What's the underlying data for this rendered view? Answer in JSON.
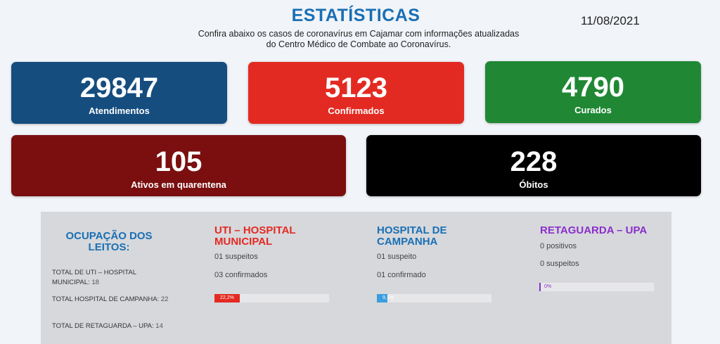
{
  "header": {
    "title": "ESTATÍSTICAS",
    "date": "11/08/2021",
    "subtitle_line1": "Confira abaixo os casos de coronavírus em Cajamar com informações atualizadas",
    "subtitle_line2": "do Centro Médico de Combate ao Coronavírus."
  },
  "cards": {
    "atendimentos": {
      "value": "29847",
      "label": "Atendimentos",
      "color": "#154d7f"
    },
    "confirmados": {
      "value": "5123",
      "label": "Confirmados",
      "color": "#e32a22"
    },
    "curados": {
      "value": "4790",
      "label": "Curados",
      "color": "#208834"
    },
    "ativos": {
      "value": "105",
      "label": "Ativos em quarentena",
      "color": "#7b0f0f"
    },
    "obitos": {
      "value": "228",
      "label": "Óbitos",
      "color": "#000000"
    }
  },
  "ocupacao": {
    "title_line1": "OCUPAÇÃO DOS",
    "title_line2": "LEITOS:",
    "stats": [
      {
        "label": "TOTAL DE UTI – HOSPITAL MUNICIPAL:",
        "value": "18"
      },
      {
        "label": "TOTAL HOSPITAL DE CAMPANHA:",
        "value": "22"
      },
      {
        "label": "TOTAL DE RETAGUARDA – UPA:",
        "value": "14"
      }
    ]
  },
  "columns": {
    "uti": {
      "title_line1": "UTI – HOSPITAL",
      "title_line2": "MUNICIPAL",
      "line1": "01 suspeitos",
      "line2": "03 confirmados",
      "percent_label": "22,2%",
      "percent": 22.2,
      "color": "#e32a22"
    },
    "campanha": {
      "title_line1": "HOSPITAL DE",
      "title_line2": "CAMPANHA",
      "line1": "01 suspeito",
      "line2": "01 confirmado",
      "percent_label": "9,1%",
      "percent": 9.1,
      "color": "#3a9ddf"
    },
    "retaguarda": {
      "title_line1": "RETAGUARDA – UPA",
      "line1": "0 positivos",
      "line2": "0 suspeitos",
      "percent_label": "0%",
      "percent": 0,
      "color": "#8b2fc9"
    }
  }
}
